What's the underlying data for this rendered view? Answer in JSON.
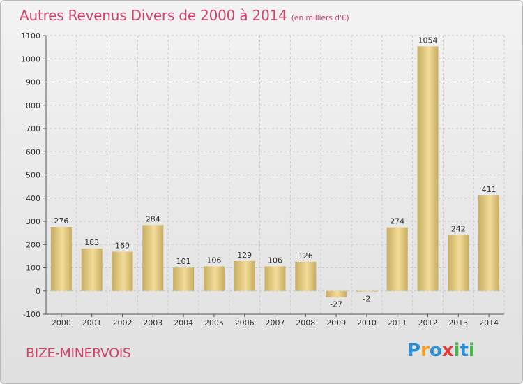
{
  "header": {
    "title": "Autres Revenus Divers de 2000 à 2014",
    "subtitle": "(en milliers d'€)"
  },
  "footer": {
    "commune": "BIZE-MINERVOIS",
    "brand_letters": [
      "P",
      "r",
      "o",
      "x",
      "i",
      "t",
      "i"
    ],
    "brand_colors": [
      "#2f8fd6",
      "#f29a1f",
      "#2f8fd6",
      "#e33b3b",
      "#47b54a",
      "#2f8fd6",
      "#47b54a"
    ]
  },
  "chart_data": {
    "type": "bar",
    "title": "Autres Revenus Divers de 2000 à 2014",
    "subtitle": "(en milliers d'€)",
    "categories": [
      "2000",
      "2001",
      "2002",
      "2003",
      "2004",
      "2005",
      "2006",
      "2007",
      "2008",
      "2009",
      "2010",
      "2011",
      "2012",
      "2013",
      "2014"
    ],
    "values": [
      276,
      183,
      169,
      284,
      101,
      106,
      129,
      106,
      126,
      -27,
      -2,
      274,
      1054,
      242,
      411
    ],
    "ylim": [
      -100,
      1100
    ],
    "yticks": [
      -100,
      0,
      100,
      200,
      300,
      400,
      500,
      600,
      700,
      800,
      900,
      1000,
      1100
    ],
    "grid": true,
    "colors": {
      "bar_light": "#f3dc98",
      "bar_dark": "#c7ad62",
      "title": "#d0436a"
    }
  }
}
